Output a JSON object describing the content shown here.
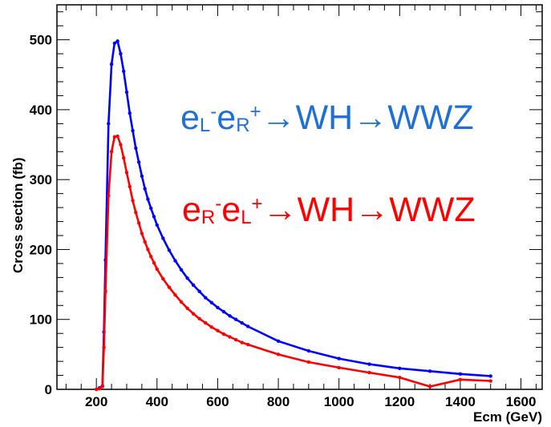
{
  "chart_data": {
    "type": "line",
    "xlabel": "Ecm (GeV)",
    "ylabel": "Cross section (fb)",
    "xlim": [
      70,
      1670
    ],
    "ylim": [
      0,
      550
    ],
    "xticks": [
      200,
      400,
      600,
      800,
      1000,
      1200,
      1400,
      1600
    ],
    "yticks": [
      0,
      100,
      200,
      300,
      400,
      500
    ],
    "grid": false,
    "series": [
      {
        "color": "#0000ff",
        "x": [
          200,
          210,
          220,
          225,
          230,
          240,
          250,
          260,
          270,
          280,
          290,
          300,
          310,
          320,
          330,
          340,
          350,
          360,
          370,
          380,
          390,
          400,
          420,
          440,
          460,
          480,
          500,
          520,
          540,
          560,
          580,
          600,
          620,
          640,
          660,
          680,
          700,
          800,
          900,
          1000,
          1100,
          1200,
          1300,
          1400,
          1500
        ],
        "y": [
          0,
          2,
          5,
          82,
          185,
          380,
          465,
          495,
          498,
          480,
          455,
          425,
          395,
          370,
          345,
          325,
          305,
          287,
          272,
          259,
          247,
          235,
          216,
          199,
          184,
          171,
          159,
          149,
          140,
          131,
          124,
          117,
          111,
          105,
          100,
          95,
          90,
          69,
          55,
          44,
          36,
          30,
          26,
          22,
          19
        ]
      },
      {
        "color": "#ff0000",
        "x": [
          200,
          210,
          220,
          225,
          230,
          240,
          250,
          260,
          270,
          280,
          290,
          300,
          310,
          320,
          330,
          340,
          350,
          360,
          370,
          380,
          390,
          400,
          420,
          440,
          460,
          480,
          500,
          520,
          540,
          560,
          580,
          600,
          620,
          640,
          660,
          680,
          700,
          800,
          900,
          1000,
          1100,
          1200,
          1300,
          1400,
          1500
        ],
        "y": [
          0,
          1,
          4,
          60,
          140,
          277,
          340,
          361,
          362,
          350,
          331,
          310,
          290,
          270,
          253,
          238,
          223,
          211,
          200,
          190,
          181,
          172,
          158,
          146,
          135,
          125,
          116,
          108,
          101,
          95,
          89,
          84,
          79,
          75,
          71,
          67,
          64,
          50,
          39,
          31,
          24,
          17,
          4,
          14,
          12
        ]
      }
    ],
    "annotations": [
      {
        "color": "#1f70d6",
        "parts": [
          {
            "text": "e"
          },
          {
            "text": "L",
            "sub": true
          },
          {
            "text": "-",
            "sup": true
          },
          {
            "text": "e"
          },
          {
            "text": "R",
            "sub": true
          },
          {
            "text": "+",
            "sup": true
          },
          {
            "text": "→WH→WWZ"
          }
        ]
      },
      {
        "color": "#ff0000",
        "parts": [
          {
            "text": "e"
          },
          {
            "text": "R",
            "sub": true
          },
          {
            "text": "-",
            "sup": true
          },
          {
            "text": "e"
          },
          {
            "text": "L",
            "sub": true
          },
          {
            "text": "+",
            "sup": true
          },
          {
            "text": "→WH→WWZ"
          }
        ]
      }
    ]
  }
}
